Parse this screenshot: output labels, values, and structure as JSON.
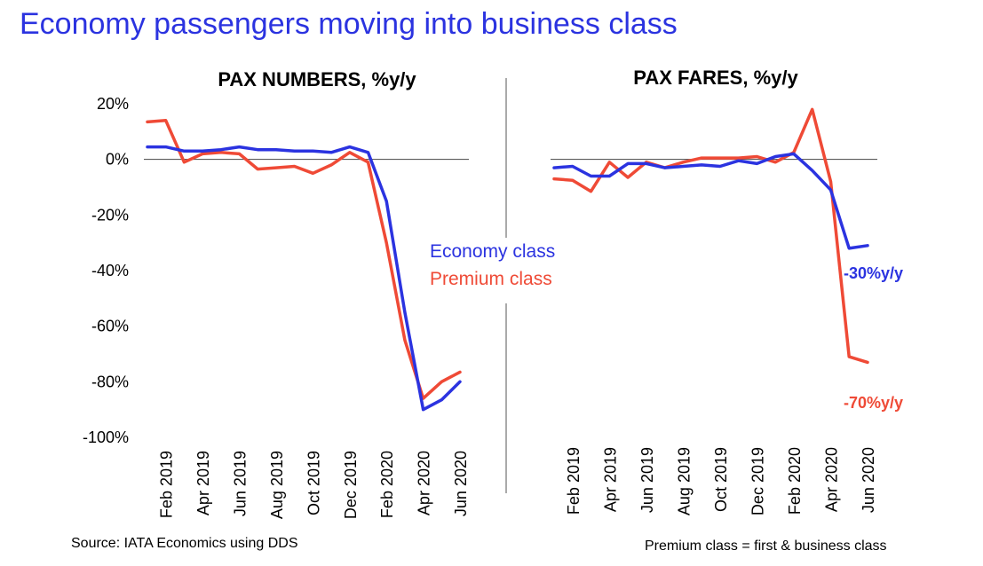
{
  "title": "Economy passengers moving into business class",
  "source": "Source: IATA Economics using DDS",
  "footnote": "Premium class = first & business class",
  "colors": {
    "title": "#2b33e0",
    "economy": "#2b33e0",
    "premium": "#ef4a36"
  },
  "legend": {
    "economy": "Economy class",
    "premium": "Premium class"
  },
  "chart_data": [
    {
      "type": "line",
      "title": "PAX NUMBERS, %y/y",
      "ylim": [
        -100,
        20
      ],
      "yticks": [
        "20%",
        "0%",
        "-20%",
        "-40%",
        "-60%",
        "-80%",
        "-100%"
      ],
      "ytick_values": [
        20,
        0,
        -20,
        -40,
        -60,
        -80,
        -100
      ],
      "categories": [
        "Jan 2019",
        "Feb 2019",
        "Mar 2019",
        "Apr 2019",
        "May 2019",
        "Jun 2019",
        "Jul 2019",
        "Aug 2019",
        "Sep 2019",
        "Oct 2019",
        "Nov 2019",
        "Dec 2019",
        "Jan 2020",
        "Feb 2020",
        "Mar 2020",
        "Apr 2020",
        "May 2020",
        "Jun 2020"
      ],
      "xtick_labels": [
        "Feb 2019",
        "Apr 2019",
        "Jun 2019",
        "Aug 2019",
        "Oct 2019",
        "Dec 2019",
        "Feb 2020",
        "Apr 2020",
        "Jun 2020"
      ],
      "xtick_index": [
        1,
        3,
        5,
        7,
        9,
        11,
        13,
        15,
        17
      ],
      "series": [
        {
          "name": "Economy class",
          "key": "economy",
          "values": [
            4.5,
            4.5,
            3,
            3,
            3.5,
            4.5,
            3.5,
            3.5,
            3,
            3,
            2.5,
            4.5,
            2.5,
            -15,
            -55,
            -90,
            -86.5,
            -80
          ]
        },
        {
          "name": "Premium class",
          "key": "premium",
          "values": [
            13.5,
            14,
            -1,
            2,
            2.5,
            2,
            -3.5,
            -3,
            -2.5,
            -5,
            -2,
            2.5,
            -1,
            -30,
            -65,
            -86,
            -80,
            -76.5
          ]
        }
      ]
    },
    {
      "type": "line",
      "title": "PAX FARES, %y/y",
      "ylim": [
        -100,
        20
      ],
      "categories": [
        "Jan 2019",
        "Feb 2019",
        "Mar 2019",
        "Apr 2019",
        "May 2019",
        "Jun 2019",
        "Jul 2019",
        "Aug 2019",
        "Sep 2019",
        "Oct 2019",
        "Nov 2019",
        "Dec 2019",
        "Jan 2020",
        "Feb 2020",
        "Mar 2020",
        "Apr 2020",
        "May 2020",
        "Jun 2020"
      ],
      "xtick_labels": [
        "Feb 2019",
        "Apr 2019",
        "Jun 2019",
        "Aug 2019",
        "Oct 2019",
        "Dec 2019",
        "Feb 2020",
        "Apr 2020",
        "Jun 2020"
      ],
      "xtick_index": [
        1,
        3,
        5,
        7,
        9,
        11,
        13,
        15,
        17
      ],
      "annotations": {
        "economy": "-30%y/y",
        "premium": "-70%y/y"
      },
      "series": [
        {
          "name": "Economy class",
          "key": "economy",
          "values": [
            -3,
            -2.5,
            -6,
            -6,
            -1.5,
            -1.5,
            -3,
            -2.5,
            -2,
            -2.5,
            -0.5,
            -1.5,
            1,
            2,
            -4,
            -11,
            -32,
            -31
          ]
        },
        {
          "name": "Premium class",
          "key": "premium",
          "values": [
            -7,
            -7.5,
            -11.5,
            -1,
            -6.5,
            -1,
            -3,
            -1,
            0.5,
            0.5,
            0.5,
            1,
            -1,
            2.5,
            18,
            -8,
            -71,
            -73
          ]
        }
      ]
    }
  ]
}
